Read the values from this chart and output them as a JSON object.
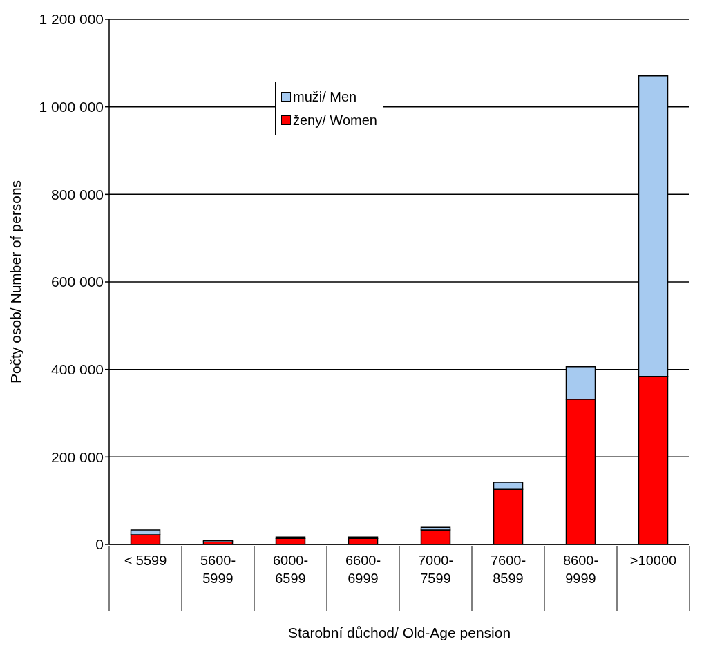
{
  "chart_data": {
    "type": "bar",
    "stacked": true,
    "xlabel": "Starobní důchod/ Old-Age pension",
    "ylabel": "Počty osob/ Number of persons",
    "categories": [
      "< 5599",
      "5600-5999",
      "6000-6599",
      "6600-6999",
      "7000-7599",
      "7600-8599",
      "8600-9999",
      ">10000"
    ],
    "series": [
      {
        "name": "ženy/ Women",
        "color": "#ff0000",
        "values": [
          22000,
          6000,
          14000,
          14000,
          33000,
          126000,
          332000,
          384000
        ]
      },
      {
        "name": "muži/ Men",
        "color": "#a6caf0",
        "values": [
          11000,
          3000,
          3000,
          3000,
          6000,
          16000,
          74000,
          687000
        ]
      }
    ],
    "ylim": [
      0,
      1200000
    ],
    "yticks": [
      {
        "value": 0,
        "label": "0"
      },
      {
        "value": 200000,
        "label": "200 000"
      },
      {
        "value": 400000,
        "label": "400 000"
      },
      {
        "value": 600000,
        "label": "600 000"
      },
      {
        "value": 800000,
        "label": "800 000"
      },
      {
        "value": 1000000,
        "label": "1 000 000"
      },
      {
        "value": 1200000,
        "label": "1 200 000"
      }
    ],
    "grid": "y",
    "legend": "top"
  }
}
